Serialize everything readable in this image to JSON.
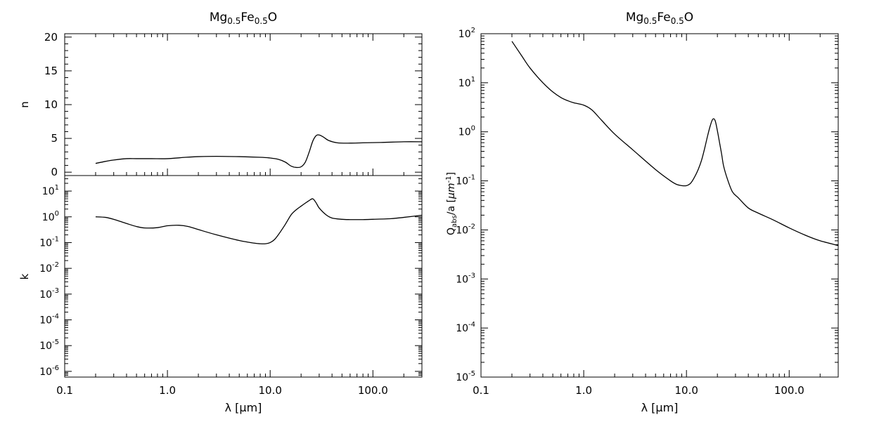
{
  "chart_data": [
    {
      "type": "line",
      "panel": "left-top",
      "title": "Mg0.5Fe0.5O",
      "title_parts": {
        "base1": "Mg",
        "sub1": "0.5",
        "base2": "Fe",
        "sub2": "0.5",
        "base3": "O"
      },
      "xscale": "log",
      "xlim": [
        0.1,
        300
      ],
      "xticks": [
        0.1,
        1.0,
        10.0,
        100.0
      ],
      "xtick_labels": [
        "0.1",
        "1.0",
        "10.0",
        "100.0"
      ],
      "xlabel": "",
      "yscale": "linear",
      "ylim": [
        -0.5,
        20.5
      ],
      "yticks": [
        0,
        5,
        10,
        15,
        20
      ],
      "ytick_labels": [
        "0",
        "5",
        "10",
        "15",
        "20"
      ],
      "ylabel": "n",
      "series": [
        {
          "x": [
            0.2,
            0.25,
            0.3,
            0.4,
            0.5,
            0.7,
            1.0,
            1.5,
            2.0,
            3.0,
            5.0,
            8.0,
            10.0,
            12.0,
            14.0,
            16.0,
            18.0,
            20.0,
            22.0,
            24.0,
            26.0,
            28.0,
            30.0,
            33.0,
            37.0,
            45.0,
            60.0,
            80.0,
            120.0,
            200.0,
            300.0
          ],
          "y": [
            1.3,
            1.6,
            1.8,
            2.0,
            2.0,
            2.0,
            2.0,
            2.2,
            2.3,
            2.35,
            2.3,
            2.2,
            2.1,
            1.9,
            1.5,
            0.9,
            0.7,
            0.8,
            1.5,
            3.0,
            4.6,
            5.4,
            5.5,
            5.2,
            4.7,
            4.35,
            4.3,
            4.35,
            4.4,
            4.5,
            4.5
          ]
        }
      ]
    },
    {
      "type": "line",
      "panel": "left-bottom",
      "xscale": "log",
      "xlim": [
        0.1,
        300
      ],
      "xticks": [
        0.1,
        1.0,
        10.0,
        100.0
      ],
      "xtick_labels": [
        "0.1",
        "1.0",
        "10.0",
        "100.0"
      ],
      "xlabel": "λ [μm]",
      "yscale": "log",
      "ylim": [
        6e-07,
        40
      ],
      "yticks": [
        1e-06,
        1e-05,
        0.0001,
        0.001,
        0.01,
        0.1,
        1,
        10
      ],
      "ytick_labels": [
        [
          "10",
          "-6"
        ],
        [
          "10",
          "-5"
        ],
        [
          "10",
          "-4"
        ],
        [
          "10",
          "-3"
        ],
        [
          "10",
          "-2"
        ],
        [
          "10",
          "-1"
        ],
        [
          "10",
          "0"
        ],
        [
          "10",
          "1"
        ]
      ],
      "ylabel": "k",
      "series": [
        {
          "x": [
            0.2,
            0.25,
            0.3,
            0.4,
            0.5,
            0.6,
            0.8,
            1.0,
            1.3,
            1.6,
            2.0,
            3.0,
            5.0,
            7.0,
            8.0,
            9.0,
            10.0,
            11.0,
            12.0,
            14.0,
            16.0,
            18.0,
            20.0,
            22.0,
            24.0,
            26.0,
            28.0,
            30.0,
            35.0,
            40.0,
            50.0,
            60.0,
            80.0,
            100.0,
            150.0,
            200.0,
            300.0
          ],
          "y": [
            1.0,
            0.95,
            0.8,
            0.55,
            0.42,
            0.37,
            0.38,
            0.45,
            0.47,
            0.42,
            0.32,
            0.2,
            0.12,
            0.095,
            0.09,
            0.09,
            0.1,
            0.13,
            0.2,
            0.5,
            1.2,
            1.9,
            2.6,
            3.4,
            4.3,
            5.0,
            3.5,
            2.2,
            1.2,
            0.9,
            0.8,
            0.78,
            0.78,
            0.8,
            0.85,
            0.95,
            1.15
          ]
        }
      ]
    },
    {
      "type": "line",
      "panel": "right",
      "title": "Mg0.5Fe0.5O",
      "title_parts": {
        "base1": "Mg",
        "sub1": "0.5",
        "base2": "Fe",
        "sub2": "0.5",
        "base3": "O"
      },
      "xscale": "log",
      "xlim": [
        0.1,
        300
      ],
      "xticks": [
        0.1,
        1.0,
        10.0,
        100.0
      ],
      "xtick_labels": [
        "0.1",
        "1.0",
        "10.0",
        "100.0"
      ],
      "xlabel": "λ [μm]",
      "yscale": "log",
      "ylim": [
        1e-05,
        100
      ],
      "yticks": [
        1e-05,
        0.0001,
        0.001,
        0.01,
        0.1,
        1,
        10,
        100
      ],
      "ytick_labels": [
        [
          "10",
          "-5"
        ],
        [
          "10",
          "-4"
        ],
        [
          "10",
          "-3"
        ],
        [
          "10",
          "-2"
        ],
        [
          "10",
          "-1"
        ],
        [
          "10",
          "0"
        ],
        [
          "10",
          "1"
        ],
        [
          "10",
          "2"
        ]
      ],
      "ylabel": "Qabs/a [μm-1]",
      "ylabel_parts": {
        "q": "Q",
        "sub": "abs",
        "mid": "/a [",
        "mu": "μm",
        "sup": "-1",
        "end": "]"
      },
      "series": [
        {
          "x": [
            0.2,
            0.25,
            0.3,
            0.4,
            0.5,
            0.6,
            0.7,
            0.8,
            1.0,
            1.2,
            1.5,
            2.0,
            3.0,
            5.0,
            7.0,
            8.0,
            9.0,
            10.0,
            11.0,
            12.0,
            13.0,
            14.0,
            15.0,
            16.0,
            17.0,
            18.0,
            19.0,
            20.0,
            21.0,
            22.0,
            23.0,
            25.0,
            28.0,
            32.0,
            40.0,
            50.0,
            70.0,
            100.0,
            150.0,
            200.0,
            300.0
          ],
          "y": [
            70,
            35,
            20,
            10,
            6.5,
            5.0,
            4.3,
            3.9,
            3.5,
            2.8,
            1.7,
            0.9,
            0.43,
            0.17,
            0.1,
            0.085,
            0.08,
            0.08,
            0.09,
            0.12,
            0.17,
            0.26,
            0.45,
            0.8,
            1.3,
            1.8,
            1.7,
            1.05,
            0.6,
            0.35,
            0.2,
            0.11,
            0.06,
            0.045,
            0.028,
            0.022,
            0.016,
            0.011,
            0.0075,
            0.006,
            0.0048
          ]
        }
      ]
    }
  ]
}
